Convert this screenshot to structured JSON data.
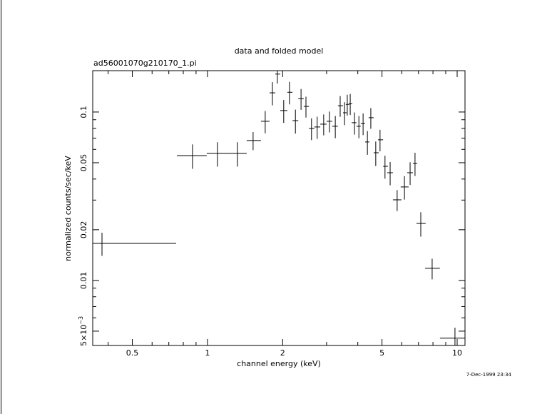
{
  "chart_data": {
    "type": "scatter",
    "title": "data and folded model",
    "subtitle": "ad56001070g210170_1.pi",
    "xlabel": "channel energy (keV)",
    "ylabel": "normalized counts/sec/keV",
    "timestamp": "7-Dec-1999 23:34",
    "xscale": "log",
    "yscale": "log",
    "xlim": [
      0.347,
      10.75
    ],
    "ylim": [
      0.00411,
      0.176
    ],
    "xticks": [
      0.5,
      1,
      2,
      5,
      10
    ],
    "xminorticks": [
      0.4,
      0.6,
      0.7,
      0.8,
      0.9,
      3,
      4,
      6,
      7,
      8,
      9
    ],
    "yticks": [
      {
        "value": 0.005,
        "label": "5×10",
        "superscript": "−3"
      },
      0.01,
      0.02,
      0.05,
      0.1
    ],
    "yminorticks": [
      0.006,
      0.007,
      0.008,
      0.009,
      0.03,
      0.04,
      0.06,
      0.07,
      0.08,
      0.09
    ],
    "color": "#000000",
    "series": [
      {
        "x": [
          0.378,
          0.871,
          1.096,
          1.318,
          1.523,
          1.703,
          1.82,
          1.905,
          2.02,
          2.13,
          2.25,
          2.37,
          2.48,
          2.61,
          2.75,
          2.92,
          3.08,
          3.25,
          3.4,
          3.54,
          3.63,
          3.73,
          3.88,
          4.04,
          4.2,
          4.37,
          4.51,
          4.72,
          4.91,
          5.14,
          5.39,
          5.75,
          6.15,
          6.48,
          6.78,
          7.15,
          7.94,
          9.8
        ],
        "x_low": [
          0.347,
          0.754,
          0.993,
          1.21,
          1.436,
          1.637,
          1.773,
          1.868,
          1.956,
          2.09,
          2.19,
          2.31,
          2.43,
          2.55,
          2.68,
          2.83,
          3.0,
          3.16,
          3.33,
          3.49,
          3.58,
          3.68,
          3.78,
          3.95,
          4.11,
          4.28,
          4.42,
          4.63,
          4.82,
          5.05,
          5.25,
          5.53,
          5.94,
          6.31,
          6.65,
          6.87,
          7.44,
          8.53
        ],
        "x_high": [
          0.749,
          0.993,
          1.21,
          1.436,
          1.637,
          1.773,
          1.868,
          1.956,
          2.09,
          2.19,
          2.31,
          2.43,
          2.55,
          2.68,
          2.83,
          3.0,
          3.16,
          3.33,
          3.49,
          3.61,
          3.7,
          3.8,
          3.95,
          4.11,
          4.28,
          4.45,
          4.63,
          4.85,
          5.05,
          5.28,
          5.53,
          5.98,
          6.39,
          6.65,
          6.92,
          7.48,
          8.53,
          10.75
        ],
        "values": [
          0.0166,
          0.0551,
          0.0568,
          0.0568,
          0.0677,
          0.0881,
          0.13,
          0.168,
          0.102,
          0.131,
          0.0889,
          0.12,
          0.108,
          0.0799,
          0.0815,
          0.0847,
          0.0881,
          0.0823,
          0.109,
          0.099,
          0.111,
          0.112,
          0.0864,
          0.0823,
          0.0855,
          0.0664,
          0.0925,
          0.0573,
          0.0684,
          0.0476,
          0.0436,
          0.0301,
          0.0359,
          0.0436,
          0.0495,
          0.0218,
          0.0118,
          0.00454
        ],
        "errors": [
          0.0026,
          0.0091,
          0.0094,
          0.0094,
          0.0083,
          0.0133,
          0.0205,
          0.0205,
          0.0158,
          0.02,
          0.0144,
          0.017,
          0.0153,
          0.0118,
          0.0123,
          0.012,
          0.0125,
          0.0124,
          0.0154,
          0.0154,
          0.0157,
          0.016,
          0.013,
          0.0124,
          0.0126,
          0.0107,
          0.013,
          0.0095,
          0.01,
          0.0074,
          0.0069,
          0.0043,
          0.0057,
          0.0067,
          0.0078,
          0.0036,
          0.00165,
          0.0007
        ]
      }
    ]
  }
}
